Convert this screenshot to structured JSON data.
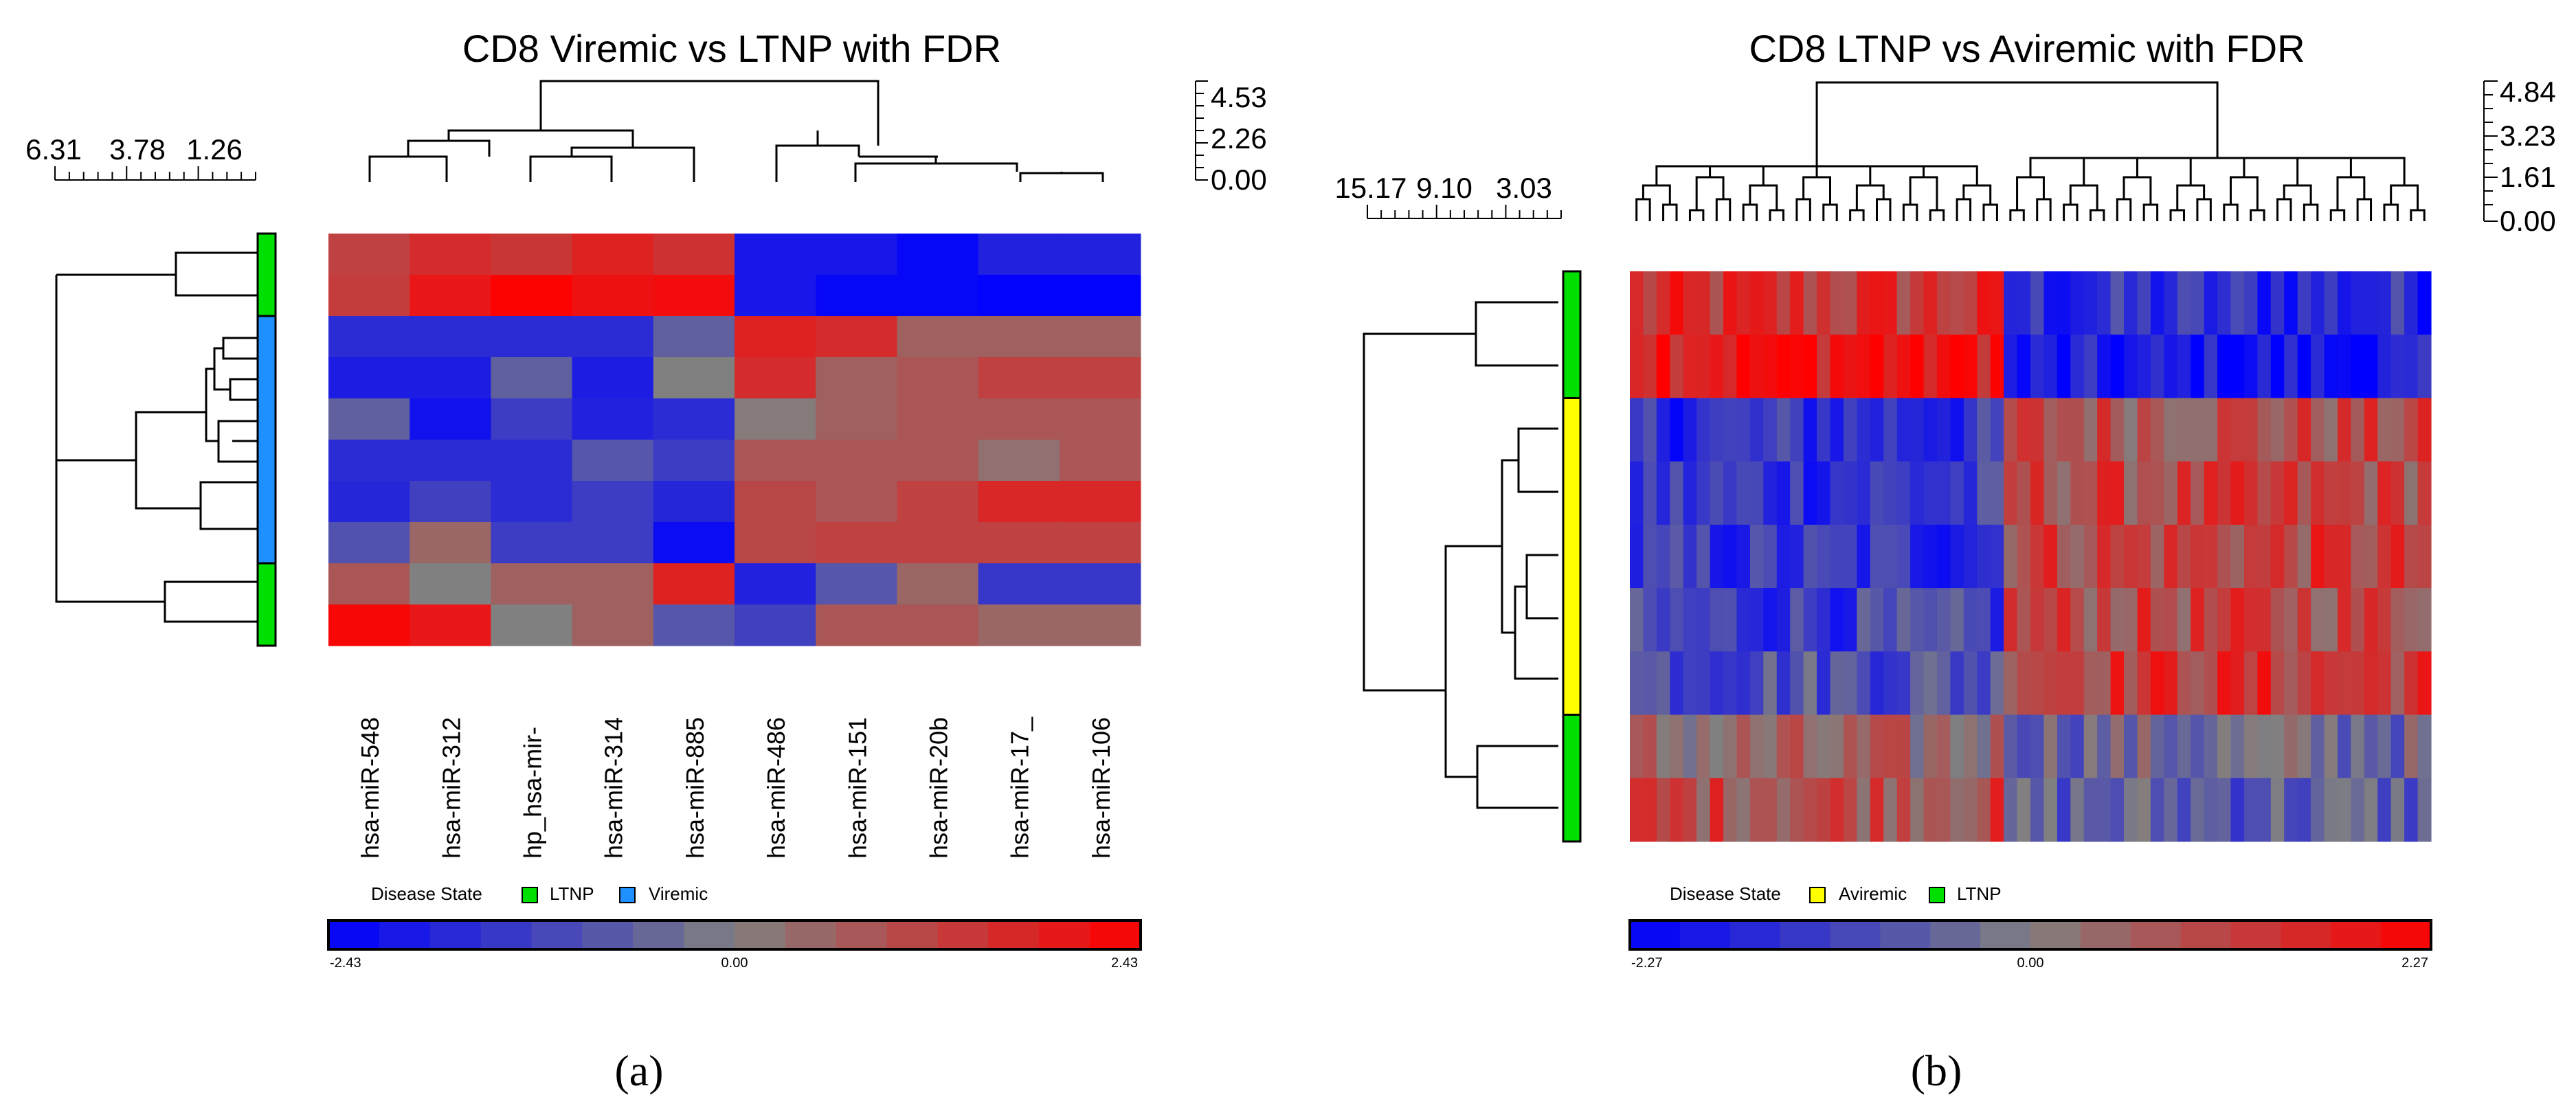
{
  "colors": {
    "low": "#0000ff",
    "mid": "#808080",
    "high": "#ff0000",
    "ltnp": "#00e000",
    "viremic": "#1e90ff",
    "aviremic": "#ffff00"
  },
  "chart_data": [
    {
      "type": "heatmap",
      "panel": "a",
      "caption": "(a)",
      "title": "CD8 Viremic vs LTNP with FDR",
      "column_scale_ticks": [
        "4.53",
        "2.26",
        "0.00"
      ],
      "row_scale_ticks": [
        "6.31",
        "3.78",
        "1.26"
      ],
      "columns": [
        "hsa-miR-548",
        "hsa-miR-312",
        "hp_hsa-mir-",
        "hsa-miR-314",
        "hsa-miR-885",
        "hsa-miR-486",
        "hsa-miR-151",
        "hsa-miR-20b",
        "hsa-miR-17_",
        "hsa-miR-106"
      ],
      "row_groups": [
        "LTNP",
        "LTNP",
        "Viremic",
        "Viremic",
        "Viremic",
        "Viremic",
        "Viremic",
        "Viremic",
        "LTNP",
        "LTNP"
      ],
      "legend_label": "Disease State",
      "legend": [
        {
          "label": "LTNP",
          "color": "#00e000"
        },
        {
          "label": "Viremic",
          "color": "#1e90ff"
        }
      ],
      "colorbar": {
        "min": -2.43,
        "mid": 0.0,
        "max": 2.43,
        "labels": [
          "-2.43",
          "0.00",
          "2.43"
        ]
      },
      "values": [
        [
          1.2,
          1.6,
          1.4,
          1.8,
          1.5,
          -2.0,
          -2.0,
          -2.3,
          -1.8,
          -1.8
        ],
        [
          1.3,
          2.0,
          2.4,
          2.1,
          2.2,
          -2.0,
          -2.3,
          -2.3,
          -2.4,
          -2.4
        ],
        [
          -1.6,
          -1.6,
          -1.6,
          -1.6,
          -0.6,
          1.8,
          1.6,
          0.6,
          0.6,
          0.6
        ],
        [
          -1.9,
          -1.9,
          -0.6,
          -1.9,
          0.0,
          1.6,
          0.6,
          0.8,
          1.2,
          1.2
        ],
        [
          -0.6,
          -2.1,
          -1.3,
          -1.8,
          -1.6,
          0.1,
          0.6,
          0.8,
          0.8,
          0.8
        ],
        [
          -1.6,
          -1.6,
          -1.6,
          -0.8,
          -1.3,
          0.8,
          0.8,
          0.8,
          0.3,
          0.8
        ],
        [
          -1.7,
          -1.2,
          -1.6,
          -1.3,
          -1.7,
          1.1,
          0.8,
          1.2,
          1.7,
          1.7
        ],
        [
          -0.9,
          0.5,
          -1.3,
          -1.3,
          -2.2,
          1.1,
          1.2,
          1.2,
          1.2,
          1.2
        ],
        [
          0.8,
          0.0,
          0.6,
          0.6,
          1.8,
          -1.8,
          -0.8,
          0.5,
          -1.4,
          -1.4
        ],
        [
          2.3,
          2.0,
          0.0,
          0.6,
          -0.8,
          -1.2,
          0.8,
          0.8,
          0.5,
          0.5
        ]
      ]
    },
    {
      "type": "heatmap",
      "panel": "b",
      "caption": "(b)",
      "title": "CD8 LTNP vs Aviremic with FDR",
      "column_scale_ticks": [
        "4.84",
        "3.23",
        "1.61",
        "0.00"
      ],
      "row_scale_ticks": [
        "15.17",
        "9.10",
        "3.03"
      ],
      "num_columns": 60,
      "row_groups": [
        "LTNP",
        "LTNP",
        "Aviremic",
        "Aviremic",
        "Aviremic",
        "Aviremic",
        "Aviremic",
        "LTNP",
        "LTNP"
      ],
      "legend_label": "Disease State",
      "legend": [
        {
          "label": "Aviremic",
          "color": "#ffff00"
        },
        {
          "label": "LTNP",
          "color": "#00e000"
        }
      ],
      "colorbar": {
        "min": -2.27,
        "mid": 0.0,
        "max": 2.27,
        "labels": [
          "-2.27",
          "0.00",
          "2.27"
        ]
      },
      "left_columns": 28,
      "row_means_left": [
        1.3,
        2.0,
        -1.4,
        -1.3,
        -1.4,
        -1.2,
        -0.8,
        0.3,
        1.0
      ],
      "row_means_right": [
        -1.5,
        -2.0,
        0.9,
        1.0,
        1.1,
        1.0,
        1.3,
        -0.3,
        -0.6
      ]
    }
  ]
}
